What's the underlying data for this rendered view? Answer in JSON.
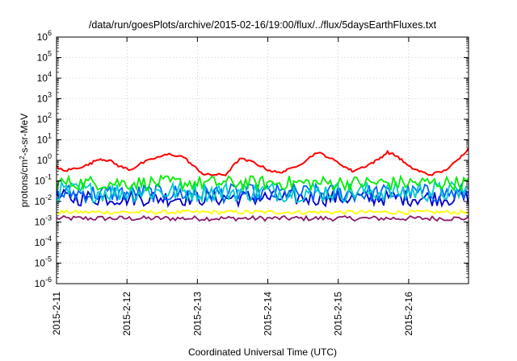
{
  "chart_data": {
    "type": "line",
    "title": "/data/run/goesPlots/archive/2015-02-16/19:00/flux/../flux/5daysEarthFluxes.txt",
    "xlabel": "Coordinated Universal Time (UTC)",
    "ylabel": {
      "prefix": "protons/cm",
      "sup": "2",
      "suffix": "-s-sr-MeV"
    },
    "yscale": "log",
    "ylim": [
      1e-06,
      1000000.0
    ],
    "xlim": [
      0,
      5.85
    ],
    "x_ticks": [
      {
        "x": 0,
        "label": "2015-2-11"
      },
      {
        "x": 1,
        "label": "2015-2-12"
      },
      {
        "x": 2,
        "label": "2015-2-13"
      },
      {
        "x": 3,
        "label": "2015-2-14"
      },
      {
        "x": 4,
        "label": "2015-2-15"
      },
      {
        "x": 5,
        "label": "2015-2-16"
      }
    ],
    "y_ticks": [
      {
        "exp": "-6"
      },
      {
        "exp": "-5"
      },
      {
        "exp": "-4"
      },
      {
        "exp": "-3"
      },
      {
        "exp": "-2"
      },
      {
        "exp": "-1"
      },
      {
        "exp": "0"
      },
      {
        "exp": "1"
      },
      {
        "exp": "2"
      },
      {
        "exp": "3"
      },
      {
        "exp": "4"
      },
      {
        "exp": "5"
      },
      {
        "exp": "6"
      }
    ],
    "grid": true,
    "legend": "none",
    "series": [
      {
        "color": "#ff0000",
        "x": [
          0,
          0.1,
          0.25,
          0.45,
          0.6,
          0.75,
          0.9,
          1.05,
          1.2,
          1.4,
          1.6,
          1.8,
          1.95,
          2.1,
          2.25,
          2.4,
          2.6,
          2.8,
          3.0,
          3.15,
          3.3,
          3.5,
          3.7,
          3.85,
          4.05,
          4.2,
          4.4,
          4.55,
          4.7,
          4.85,
          5.0,
          5.15,
          5.3,
          5.5,
          5.7,
          5.85
        ],
        "y": [
          0.5,
          0.3,
          0.4,
          0.6,
          1.2,
          1.0,
          0.5,
          0.35,
          0.7,
          1.3,
          2.0,
          1.5,
          0.5,
          0.2,
          0.2,
          0.2,
          1.2,
          0.8,
          0.35,
          0.25,
          0.35,
          0.8,
          2.5,
          1.5,
          0.6,
          0.3,
          0.55,
          1.0,
          2.5,
          1.5,
          0.5,
          0.3,
          0.2,
          0.3,
          1.0,
          4.0
        ]
      },
      {
        "color": "#00ee00",
        "base": 0.08,
        "spread": 0.35
      },
      {
        "color": "#00cccc",
        "base": 0.03,
        "spread": 0.5
      },
      {
        "color": "#0066ff",
        "base": 0.025,
        "spread": 0.45
      },
      {
        "color": "#0000cc",
        "base": 0.015,
        "spread": 0.4
      },
      {
        "color": "#ffff00",
        "base": 0.003,
        "spread": 0.1
      },
      {
        "color": "#8b1a6b",
        "base": 0.0015,
        "spread": 0.12
      }
    ]
  }
}
